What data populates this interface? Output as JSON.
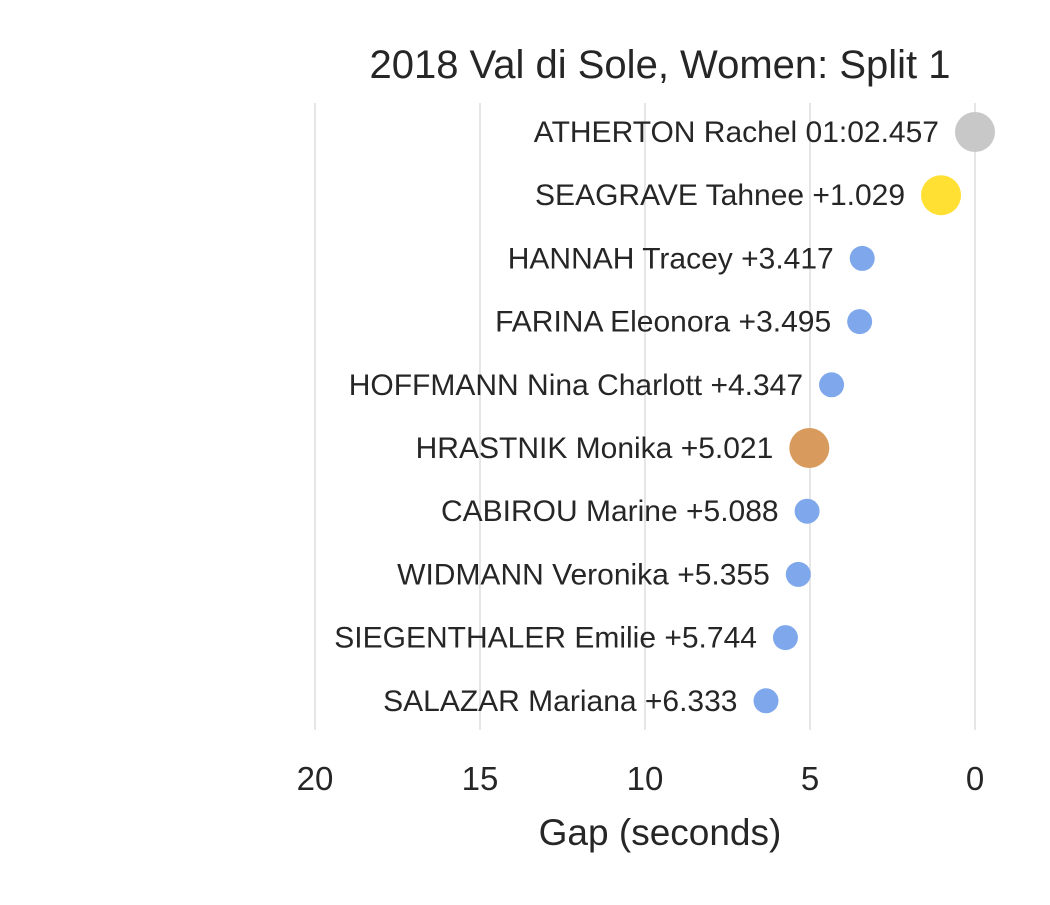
{
  "chart_data": {
    "type": "scatter",
    "title": "2018 Val di Sole, Women: Split 1",
    "xlabel": "Gap (seconds)",
    "ylabel": "",
    "xlim": [
      21,
      -1
    ],
    "x_axis_reversed": true,
    "x_ticks": [
      20,
      15,
      10,
      5,
      0
    ],
    "x_tick_labels": [
      "20",
      "15",
      "10",
      "5",
      "0"
    ],
    "grid": "vertical",
    "legend": "none",
    "points": [
      {
        "label": "ATHERTON Rachel 01:02.457",
        "gap": 0.0,
        "color": "#c8c8c8",
        "size": "large"
      },
      {
        "label": "SEAGRAVE Tahnee +1.029",
        "gap": 1.029,
        "color": "#ffe033",
        "size": "large"
      },
      {
        "label": "HANNAH Tracey +3.417",
        "gap": 3.417,
        "color": "#7fa8ec",
        "size": "small"
      },
      {
        "label": "FARINA Eleonora +3.495",
        "gap": 3.495,
        "color": "#7fa8ec",
        "size": "small"
      },
      {
        "label": "HOFFMANN Nina Charlott +4.347",
        "gap": 4.347,
        "color": "#7fa8ec",
        "size": "small"
      },
      {
        "label": "HRASTNIK Monika +5.021",
        "gap": 5.021,
        "color": "#d89a5d",
        "size": "large"
      },
      {
        "label": "CABIROU Marine +5.088",
        "gap": 5.088,
        "color": "#7fa8ec",
        "size": "small"
      },
      {
        "label": "WIDMANN Veronika +5.355",
        "gap": 5.355,
        "color": "#7fa8ec",
        "size": "small"
      },
      {
        "label": "SIEGENTHALER Emilie +5.744",
        "gap": 5.744,
        "color": "#7fa8ec",
        "size": "small"
      },
      {
        "label": "SALAZAR Mariana +6.333",
        "gap": 6.333,
        "color": "#7fa8ec",
        "size": "small"
      }
    ]
  }
}
